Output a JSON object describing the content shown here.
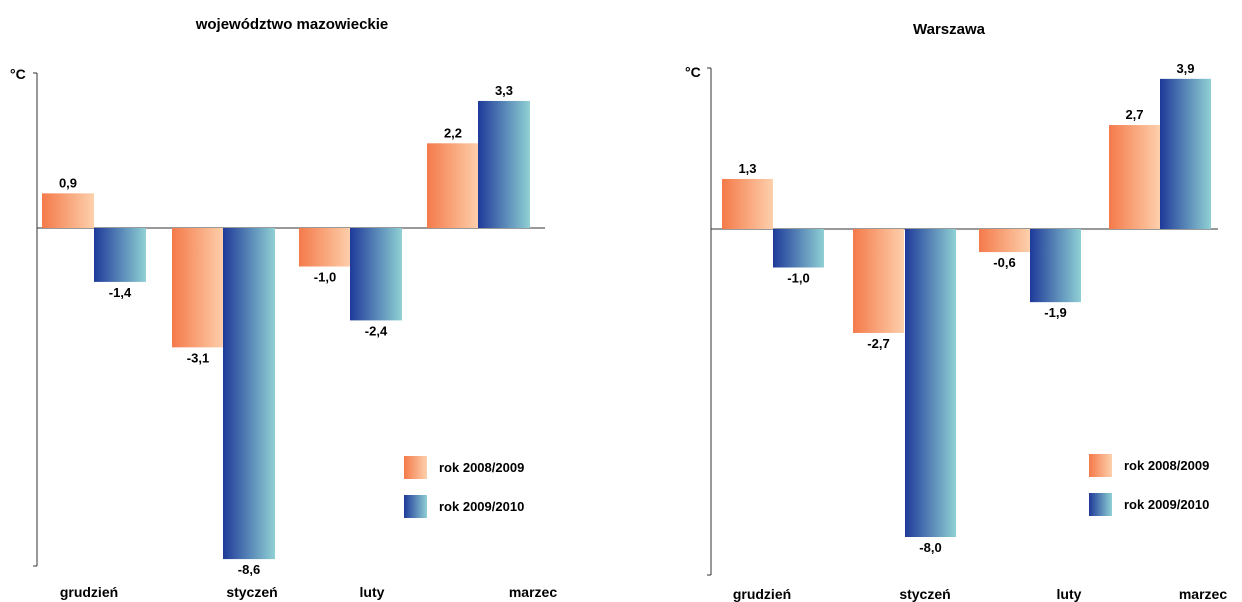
{
  "colors": {
    "orange_dark": "#f47a4a",
    "orange_light": "#fdd0ac",
    "blue_dark": "#1f3a99",
    "blue_light": "#8fd0d4"
  },
  "chart_data": [
    {
      "type": "bar",
      "title": "województwo mazowieckie",
      "ylabel": "°C",
      "categories": [
        "grudzień",
        "styczeń",
        "luty",
        "marzec"
      ],
      "ylim": [
        -8.8,
        4.0
      ],
      "grid": false,
      "legend_position": "bottom-right",
      "series": [
        {
          "name": "rok 2008/2009",
          "values": [
            0.9,
            -3.1,
            -1.0,
            2.2
          ],
          "labels": [
            "0,9",
            "-3,1",
            "-1,0",
            "2,2"
          ]
        },
        {
          "name": "rok 2009/2010",
          "values": [
            -1.4,
            -8.6,
            -2.4,
            3.3
          ],
          "labels": [
            "-1,4",
            "-8,6",
            "-2,4",
            "3,3"
          ]
        }
      ]
    },
    {
      "type": "bar",
      "title": "Warszawa",
      "ylabel": "°C",
      "categories": [
        "grudzień",
        "styczeń",
        "luty",
        "marzec"
      ],
      "ylim": [
        -8.8,
        4.3
      ],
      "grid": false,
      "legend_position": "bottom-right",
      "series": [
        {
          "name": "rok 2008/2009",
          "values": [
            1.3,
            -2.7,
            -0.6,
            2.7
          ],
          "labels": [
            "1,3",
            "-2,7",
            "-0,6",
            "2,7"
          ]
        },
        {
          "name": "rok 2009/2010",
          "values": [
            -1.0,
            -8.0,
            -1.9,
            3.9
          ],
          "labels": [
            "-1,0",
            "-8,0",
            "-1,9",
            "3,9"
          ]
        }
      ]
    }
  ]
}
